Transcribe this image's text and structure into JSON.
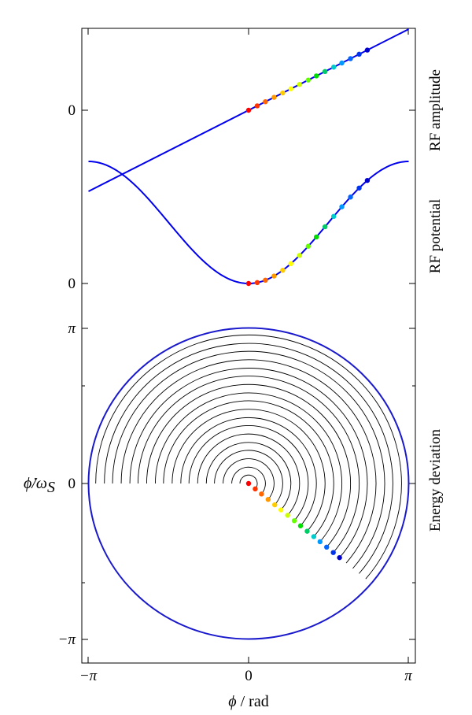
{
  "chart_data": {
    "type": "line",
    "xlabel": {
      "symbol": "ϕ",
      "unit": " / rad"
    },
    "x_ticks": [
      "−π",
      "0",
      "π"
    ],
    "xlim": [
      -3.1416,
      3.1416
    ],
    "marker_colors": [
      "#ff0000",
      "#ff3300",
      "#ff6600",
      "#ff9900",
      "#ffcc00",
      "#ffff00",
      "#ccff00",
      "#66ff00",
      "#00dd00",
      "#00cc66",
      "#00cccc",
      "#0099ff",
      "#0066ff",
      "#0033ee",
      "#0000cc"
    ],
    "marker_phi": [
      0.0,
      0.17,
      0.33,
      0.5,
      0.67,
      0.83,
      1.0,
      1.17,
      1.33,
      1.5,
      1.67,
      1.83,
      2.0,
      2.17,
      2.33
    ],
    "panels": [
      {
        "id": "rf-amplitude",
        "side_label": "RF amplitude",
        "y_tick": "0",
        "curve": "line through origin",
        "curve_color": "#0000ee",
        "ylim": [
          -1.0,
          1.0
        ]
      },
      {
        "id": "rf-potential",
        "side_label": "RF potential",
        "y_tick": "0",
        "curve": "parabola",
        "curve_color": "#0000ee",
        "ylim": [
          0,
          1.2
        ]
      },
      {
        "id": "energy-deviation",
        "side_label": "Energy deviation",
        "ylabel": {
          "dot_symbol": "ϕ̇",
          "omega": "/ω",
          "subscript": "S"
        },
        "y_ticks": [
          "π",
          "0",
          "−π"
        ],
        "ylim": [
          -3.1416,
          3.1416
        ],
        "separatrix_radius": 3.1416,
        "separatrix_color": "#1a1acc",
        "contour_radii": [
          0.17,
          0.33,
          0.5,
          0.67,
          0.83,
          1.0,
          1.17,
          1.33,
          1.5,
          1.67,
          1.83,
          2.0,
          2.17,
          2.33,
          2.5,
          2.67,
          2.83,
          3.0
        ],
        "marker_angle_deg": -40
      }
    ]
  }
}
